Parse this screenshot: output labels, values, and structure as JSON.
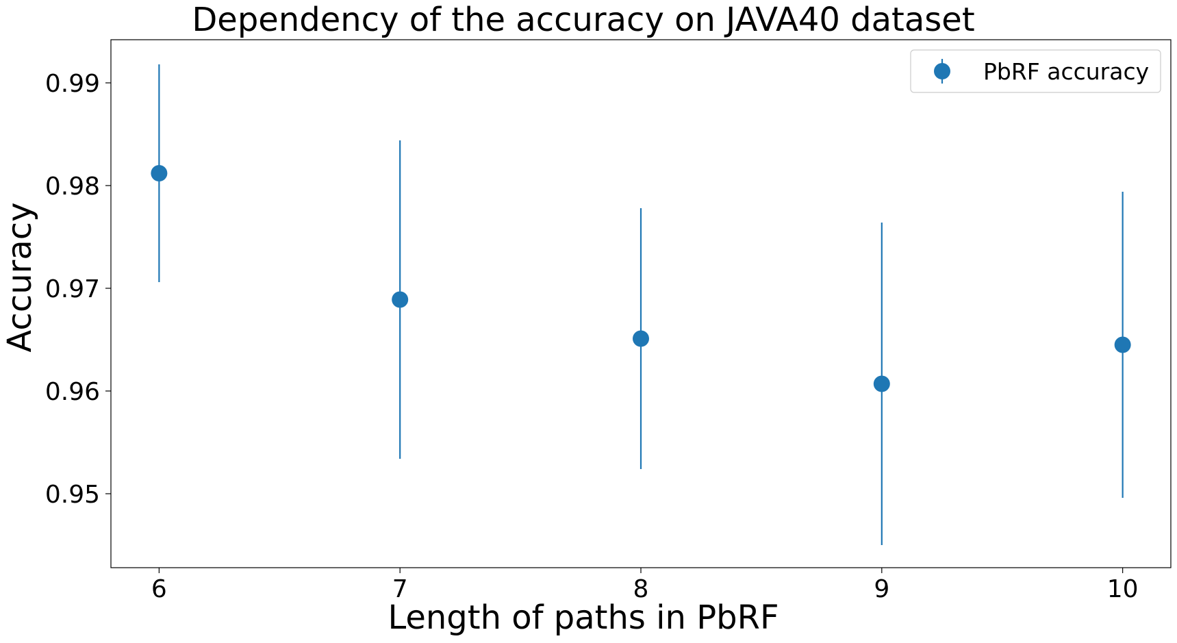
{
  "chart_data": {
    "type": "scatter",
    "title": "Dependency of the accuracy on JAVA40 dataset",
    "xlabel": "Length of paths in PbRF",
    "ylabel": "Accuracy",
    "xlim": [
      5.8,
      10.2
    ],
    "ylim": [
      0.9428,
      0.9942
    ],
    "x_ticks": [
      6,
      7,
      8,
      9,
      10
    ],
    "x_tick_labels": [
      "6",
      "7",
      "8",
      "9",
      "10"
    ],
    "y_ticks": [
      0.95,
      0.96,
      0.97,
      0.98,
      0.99
    ],
    "y_tick_labels": [
      "0.95",
      "0.96",
      "0.97",
      "0.98",
      "0.99"
    ],
    "grid": false,
    "legend_position": "top-right",
    "series": [
      {
        "name": "PbRF accuracy",
        "color": "#1f77b4",
        "marker": "circle",
        "error_bars": true,
        "points": [
          {
            "x": 6,
            "y": 0.9812,
            "low": 0.9706,
            "high": 0.9918
          },
          {
            "x": 7,
            "y": 0.9689,
            "low": 0.9534,
            "high": 0.9844
          },
          {
            "x": 8,
            "y": 0.9651,
            "low": 0.9524,
            "high": 0.9778
          },
          {
            "x": 9,
            "y": 0.9607,
            "low": 0.945,
            "high": 0.9764
          },
          {
            "x": 10,
            "y": 0.9645,
            "low": 0.9496,
            "high": 0.9794
          }
        ]
      }
    ]
  }
}
